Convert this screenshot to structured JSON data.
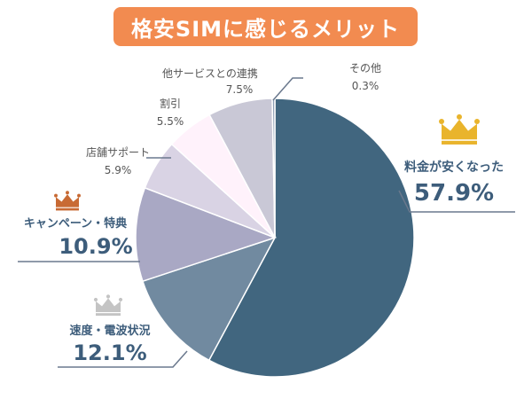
{
  "title": "格安SIMに感じるメリット",
  "colors": {
    "title_bg": "#f28b50"
  },
  "chart_data": {
    "type": "pie",
    "title": "格安SIMに感じるメリット",
    "slices": [
      {
        "label": "料金が安くなった",
        "value": 57.9,
        "display": "57.9%",
        "color": "#41667f"
      },
      {
        "label": "速度・電波状況",
        "value": 12.1,
        "display": "12.1%",
        "color": "#718aa0"
      },
      {
        "label": "キャンペーン・特典",
        "value": 10.9,
        "display": "10.9%",
        "color": "#a9a8c4"
      },
      {
        "label": "店舗サポート",
        "value": 5.9,
        "display": "5.9%",
        "color": "#d9d3e4"
      },
      {
        "label": "割引",
        "value": 5.5,
        "display": "5.5%",
        "color": "#fff2fb"
      },
      {
        "label": "他サービスとの連携",
        "value": 7.5,
        "display": "7.5%",
        "color": "#c9c8d6"
      },
      {
        "label": "その他",
        "value": 0.3,
        "display": "0.3%",
        "color": "#8f9fb5"
      }
    ]
  }
}
